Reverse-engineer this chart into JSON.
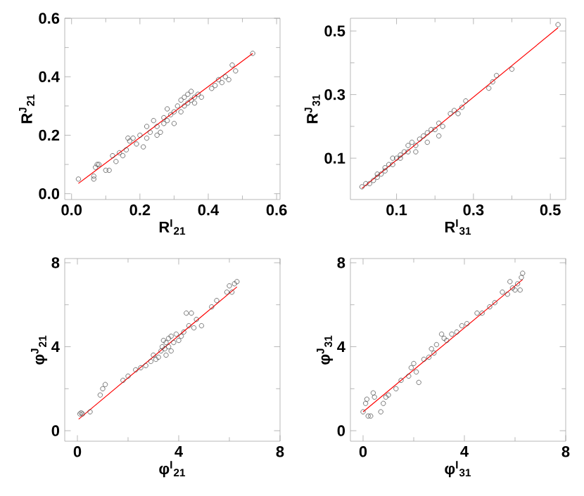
{
  "chart_data": [
    {
      "type": "scatter",
      "xlabel": "R$^{I}$$_{21}$",
      "ylabel": "R$^{J}$$_{21}$",
      "xlim": [
        -0.02,
        0.61
      ],
      "ylim": [
        -0.02,
        0.6
      ],
      "xticks": [
        {
          "value": 0,
          "label": "0.0"
        },
        0.2,
        0.4,
        0.6
      ],
      "yticks": [
        {
          "value": 0,
          "label": "0.0"
        },
        0.2,
        0.4,
        0.6
      ],
      "marker": "circle",
      "series": [
        {
          "type": "scatter",
          "color": "#404040",
          "x": [
            0.02,
            0.065,
            0.065,
            0.07,
            0.075,
            0.08,
            0.1,
            0.11,
            0.12,
            0.13,
            0.14,
            0.15,
            0.16,
            0.165,
            0.17,
            0.18,
            0.19,
            0.2,
            0.21,
            0.22,
            0.22,
            0.23,
            0.24,
            0.25,
            0.25,
            0.26,
            0.27,
            0.27,
            0.28,
            0.28,
            0.29,
            0.3,
            0.3,
            0.31,
            0.32,
            0.32,
            0.33,
            0.33,
            0.34,
            0.34,
            0.35,
            0.35,
            0.36,
            0.36,
            0.37,
            0.38,
            0.41,
            0.42,
            0.43,
            0.44,
            0.45,
            0.46,
            0.47,
            0.48,
            0.53
          ],
          "values": [
            0.05,
            0.05,
            0.06,
            0.09,
            0.1,
            0.1,
            0.08,
            0.08,
            0.13,
            0.11,
            0.14,
            0.13,
            0.15,
            0.19,
            0.18,
            0.19,
            0.17,
            0.2,
            0.16,
            0.19,
            0.23,
            0.21,
            0.25,
            0.2,
            0.23,
            0.21,
            0.24,
            0.26,
            0.29,
            0.25,
            0.27,
            0.24,
            0.28,
            0.3,
            0.28,
            0.32,
            0.3,
            0.33,
            0.31,
            0.34,
            0.32,
            0.35,
            0.31,
            0.33,
            0.34,
            0.33,
            0.36,
            0.37,
            0.39,
            0.38,
            0.4,
            0.39,
            0.44,
            0.42,
            0.48
          ]
        },
        {
          "type": "line",
          "color": "#ff0000",
          "marker": "none",
          "x": [
            0.02,
            0.53
          ],
          "values": [
            0.035,
            0.48
          ]
        }
      ]
    },
    {
      "type": "scatter",
      "xlabel": "R$^{I}$$_{31}$",
      "ylabel": "R$^{J}$$_{31}$",
      "xlim": [
        -0.02,
        0.54
      ],
      "ylim": [
        -0.03,
        0.54
      ],
      "xticks": [
        0.1,
        0.3,
        0.5
      ],
      "yticks": [
        0.1,
        0.3,
        0.5
      ],
      "marker": "circle",
      "series": [
        {
          "type": "scatter",
          "color": "#404040",
          "x": [
            0.01,
            0.02,
            0.03,
            0.04,
            0.05,
            0.05,
            0.06,
            0.07,
            0.07,
            0.08,
            0.09,
            0.09,
            0.1,
            0.11,
            0.11,
            0.12,
            0.13,
            0.13,
            0.14,
            0.15,
            0.15,
            0.16,
            0.17,
            0.18,
            0.18,
            0.19,
            0.2,
            0.21,
            0.21,
            0.22,
            0.24,
            0.25,
            0.26,
            0.27,
            0.28,
            0.34,
            0.35,
            0.36,
            0.4,
            0.52
          ],
          "values": [
            0.01,
            0.02,
            0.02,
            0.03,
            0.04,
            0.05,
            0.05,
            0.07,
            0.06,
            0.08,
            0.08,
            0.1,
            0.1,
            0.11,
            0.1,
            0.12,
            0.12,
            0.14,
            0.15,
            0.14,
            0.12,
            0.16,
            0.17,
            0.15,
            0.18,
            0.19,
            0.19,
            0.21,
            0.17,
            0.2,
            0.24,
            0.25,
            0.24,
            0.26,
            0.28,
            0.32,
            0.34,
            0.36,
            0.38,
            0.52
          ]
        },
        {
          "type": "line",
          "color": "#ff0000",
          "marker": "none",
          "x": [
            0.01,
            0.52
          ],
          "values": [
            0.005,
            0.51
          ]
        }
      ]
    },
    {
      "type": "scatter",
      "xlabel": "φ$^{I}$$_{21}$",
      "ylabel": "φ$^{J}$$_{21}$",
      "xlim": [
        -0.5,
        8
      ],
      "ylim": [
        -0.5,
        8.2
      ],
      "xticks": [
        0,
        4,
        8
      ],
      "yticks": [
        0,
        4,
        8
      ],
      "marker": "circle",
      "series": [
        {
          "type": "scatter",
          "color": "#404040",
          "x": [
            0.1,
            0.15,
            0.2,
            0.5,
            0.9,
            1.0,
            1.1,
            1.8,
            2.0,
            2.3,
            2.5,
            2.7,
            2.9,
            3.0,
            3.1,
            3.2,
            3.3,
            3.35,
            3.4,
            3.45,
            3.5,
            3.5,
            3.6,
            3.6,
            3.7,
            3.7,
            3.8,
            3.9,
            4.0,
            4.1,
            4.2,
            4.3,
            4.4,
            4.5,
            4.6,
            4.7,
            4.9,
            5.3,
            5.5,
            5.9,
            6.0,
            6.1,
            6.2,
            6.3
          ],
          "values": [
            0.8,
            0.85,
            0.8,
            0.9,
            1.7,
            2.0,
            2.2,
            2.4,
            2.6,
            2.9,
            3.0,
            3.1,
            3.3,
            3.6,
            3.4,
            3.5,
            3.8,
            4.0,
            4.3,
            3.9,
            4.2,
            3.6,
            4.4,
            4.0,
            4.5,
            3.8,
            4.2,
            4.6,
            4.3,
            4.5,
            4.7,
            5.6,
            5.0,
            5.6,
            4.9,
            5.3,
            5.0,
            5.9,
            6.2,
            6.6,
            6.9,
            6.6,
            7.0,
            7.1
          ]
        },
        {
          "type": "line",
          "color": "#ff0000",
          "marker": "none",
          "x": [
            0.05,
            6.3
          ],
          "values": [
            0.55,
            6.85
          ]
        }
      ]
    },
    {
      "type": "scatter",
      "xlabel": "φ$^{I}$$_{31}$",
      "ylabel": "φ$^{J}$$_{31}$",
      "xlim": [
        -0.5,
        8
      ],
      "ylim": [
        -0.5,
        8.2
      ],
      "xticks": [
        0,
        4,
        8
      ],
      "yticks": [
        0,
        4,
        8
      ],
      "marker": "circle",
      "series": [
        {
          "type": "scatter",
          "color": "#404040",
          "x": [
            0.0,
            0.1,
            0.15,
            0.2,
            0.3,
            0.4,
            0.45,
            0.7,
            0.8,
            0.9,
            1.0,
            1.3,
            1.5,
            1.8,
            1.9,
            2.0,
            2.1,
            2.2,
            2.4,
            2.6,
            2.7,
            2.8,
            2.9,
            3.1,
            3.2,
            3.3,
            3.5,
            3.7,
            3.9,
            4.1,
            4.5,
            4.7,
            5.0,
            5.2,
            5.5,
            5.7,
            5.8,
            5.9,
            6.0,
            6.1,
            6.2,
            6.25,
            6.3
          ],
          "values": [
            0.9,
            1.3,
            1.5,
            0.7,
            0.7,
            1.8,
            1.6,
            0.9,
            1.3,
            1.6,
            1.7,
            2.0,
            2.4,
            2.6,
            3.0,
            3.2,
            2.8,
            2.3,
            3.4,
            3.5,
            3.9,
            3.7,
            4.1,
            4.6,
            4.4,
            4.3,
            4.6,
            4.7,
            5.0,
            5.1,
            5.6,
            5.6,
            5.9,
            6.1,
            6.6,
            6.5,
            7.1,
            6.8,
            6.7,
            7.0,
            6.7,
            7.3,
            7.5
          ]
        },
        {
          "type": "line",
          "color": "#ff0000",
          "marker": "none",
          "x": [
            0.0,
            6.3
          ],
          "values": [
            0.9,
            7.2
          ]
        }
      ]
    }
  ]
}
